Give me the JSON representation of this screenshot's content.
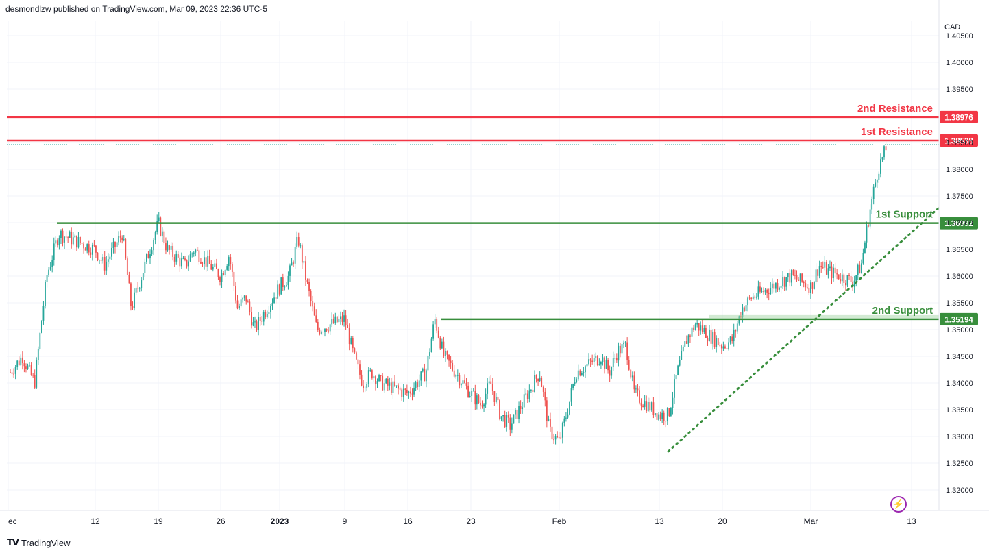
{
  "header": {
    "publisher": "desmondlzw published on TradingView.com, Mar 09, 2023 22:36 UTC-5"
  },
  "currency": "CAD",
  "footer": {
    "logo_text": "TradingView",
    "logo_icon": "tradingview-logo-icon"
  },
  "chart_data": {
    "type": "candlestick",
    "symbol_quote": "CAD",
    "ylim": [
      1.318,
      1.408
    ],
    "y_ticks": [
      "1.40500",
      "1.40000",
      "1.39500",
      "1.38500",
      "1.38000",
      "1.37500",
      "1.37000",
      "1.36500",
      "1.36000",
      "1.35500",
      "1.35000",
      "1.34500",
      "1.34000",
      "1.33500",
      "1.33000",
      "1.32500",
      "1.32000"
    ],
    "x_ticks": [
      "ec",
      "12",
      "19",
      "26",
      "2023",
      "9",
      "16",
      "23",
      "Feb",
      "13",
      "20",
      "Mar",
      "13"
    ],
    "colors": {
      "up": "#26a69a",
      "down": "#ef5350",
      "resistance": "#f23645",
      "support": "#388e3c"
    },
    "levels": [
      {
        "name": "2nd Resistance",
        "value": 1.38976,
        "label": "1.38976",
        "kind": "resistance"
      },
      {
        "name": "1st Resistance",
        "value": 1.38538,
        "label": "1.38538",
        "kind": "resistance"
      },
      {
        "name": "1st Support",
        "value": 1.36992,
        "label": "1.36992",
        "kind": "support"
      },
      {
        "name": "2nd Support",
        "value": 1.35194,
        "label": "1.35194",
        "kind": "support"
      }
    ],
    "trendline": {
      "style": "dotted",
      "color": "#388e3c",
      "from": [
        "Feb 14",
        1.3272
      ],
      "to": [
        "Mar 13",
        1.3728
      ]
    },
    "price_path": [
      [
        "Dec 5",
        1.342
      ],
      [
        "Dec 6",
        1.345
      ],
      [
        "Dec 7",
        1.34
      ],
      [
        "Dec 8",
        1.36
      ],
      [
        "Dec 9",
        1.368
      ],
      [
        "Dec 12",
        1.365
      ],
      [
        "Dec 13",
        1.362
      ],
      [
        "Dec 15",
        1.368
      ],
      [
        "Dec 16",
        1.354
      ],
      [
        "Dec 19",
        1.37
      ],
      [
        "Dec 20",
        1.365
      ],
      [
        "Dec 22",
        1.362
      ],
      [
        "Dec 23",
        1.365
      ],
      [
        "Dec 26",
        1.36
      ],
      [
        "Dec 27",
        1.364
      ],
      [
        "Dec 28",
        1.354
      ],
      [
        "Dec 29",
        1.356
      ],
      [
        "Dec 30",
        1.35
      ],
      [
        "Jan 2",
        1.358
      ],
      [
        "Jan 3",
        1.36
      ],
      [
        "Jan 4",
        1.367
      ],
      [
        "Jan 5",
        1.358
      ],
      [
        "Jan 6",
        1.35
      ],
      [
        "Jan 9",
        1.352
      ],
      [
        "Jan 10",
        1.345
      ],
      [
        "Jan 11",
        1.34
      ],
      [
        "Jan 12",
        1.342
      ],
      [
        "Jan 13",
        1.34
      ],
      [
        "Jan 16",
        1.338
      ],
      [
        "Jan 17",
        1.34
      ],
      [
        "Jan 18",
        1.342
      ],
      [
        "Jan 19",
        1.352
      ],
      [
        "Jan 20",
        1.345
      ],
      [
        "Jan 23",
        1.338
      ],
      [
        "Jan 24",
        1.336
      ],
      [
        "Jan 25",
        1.34
      ],
      [
        "Jan 26",
        1.334
      ],
      [
        "Jan 27",
        1.332
      ],
      [
        "Jan 30",
        1.342
      ],
      [
        "Jan 31",
        1.331
      ],
      [
        "Feb 1",
        1.329
      ],
      [
        "Feb 2",
        1.335
      ],
      [
        "Feb 3",
        1.342
      ],
      [
        "Feb 6",
        1.345
      ],
      [
        "Feb 7",
        1.342
      ],
      [
        "Feb 8",
        1.346
      ],
      [
        "Feb 9",
        1.347
      ],
      [
        "Feb 10",
        1.338
      ],
      [
        "Feb 13",
        1.334
      ],
      [
        "Feb 14",
        1.334
      ],
      [
        "Feb 15",
        1.342
      ],
      [
        "Feb 16",
        1.348
      ],
      [
        "Feb 17",
        1.351
      ],
      [
        "Feb 20",
        1.347
      ],
      [
        "Feb 21",
        1.348
      ],
      [
        "Feb 22",
        1.354
      ],
      [
        "Feb 23",
        1.356
      ],
      [
        "Feb 24",
        1.357
      ],
      [
        "Feb 27",
        1.36
      ],
      [
        "Feb 28",
        1.359
      ],
      [
        "Mar 1",
        1.358
      ],
      [
        "Mar 2",
        1.362
      ],
      [
        "Mar 3",
        1.361
      ],
      [
        "Mar 6",
        1.359
      ],
      [
        "Mar 7",
        1.362
      ],
      [
        "Mar 8",
        1.372
      ],
      [
        "Mar 9",
        1.38
      ],
      [
        "Mar 10",
        1.384
      ]
    ]
  }
}
